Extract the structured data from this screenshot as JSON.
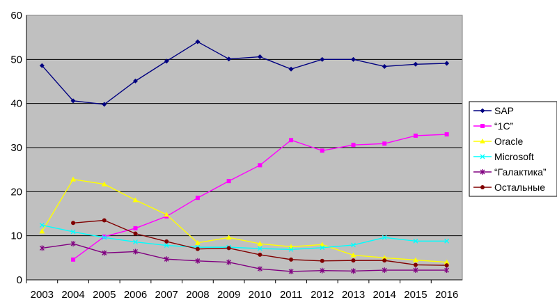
{
  "chart_data": {
    "type": "line",
    "title": "",
    "xlabel": "",
    "ylabel": "",
    "categories": [
      "2003",
      "2004",
      "2005",
      "2006",
      "2007",
      "2008",
      "2009",
      "2010",
      "2011",
      "2012",
      "2013",
      "2014",
      "2015",
      "2016"
    ],
    "ylim": [
      0,
      60
    ],
    "yticks": [
      "0",
      "10",
      "20",
      "30",
      "40",
      "50",
      "60"
    ],
    "grid": "horizontal",
    "legend_position": "right",
    "plot_background": "#c0c0c0",
    "series": [
      {
        "name": "SAP",
        "color": "#000080",
        "marker": "diamond",
        "values": [
          48.6,
          40.6,
          39.8,
          45.1,
          49.6,
          54.0,
          50.1,
          50.6,
          47.8,
          50.0,
          50.0,
          48.4,
          48.9,
          49.1
        ]
      },
      {
        "name": "“1С”",
        "color": "#ff00ff",
        "marker": "square",
        "values": [
          null,
          4.6,
          9.8,
          11.7,
          14.4,
          18.6,
          22.4,
          26.0,
          31.7,
          29.3,
          30.6,
          30.9,
          32.7,
          33.0
        ]
      },
      {
        "name": "Oracle",
        "color": "#ffff00",
        "marker": "triangle",
        "values": [
          11.0,
          22.8,
          21.7,
          18.1,
          14.8,
          8.4,
          9.6,
          8.2,
          7.5,
          8.0,
          5.6,
          5.0,
          4.5,
          4.0
        ]
      },
      {
        "name": "Microsoft",
        "color": "#00ffff",
        "marker": "x",
        "values": [
          12.4,
          10.9,
          9.6,
          8.6,
          7.8,
          7.4,
          7.4,
          7.1,
          6.9,
          7.3,
          7.9,
          9.6,
          8.8,
          8.8
        ]
      },
      {
        "name": "“Галактика”",
        "color": "#800080",
        "marker": "star",
        "values": [
          7.2,
          8.2,
          6.1,
          6.4,
          4.7,
          4.3,
          4.0,
          2.5,
          1.9,
          2.1,
          2.0,
          2.2,
          2.2,
          2.2
        ]
      },
      {
        "name": "Остальные",
        "color": "#800000",
        "marker": "circle",
        "values": [
          null,
          12.9,
          13.5,
          10.5,
          8.7,
          7.0,
          7.2,
          5.7,
          4.6,
          4.3,
          4.4,
          4.4,
          3.4,
          3.3
        ]
      }
    ]
  }
}
